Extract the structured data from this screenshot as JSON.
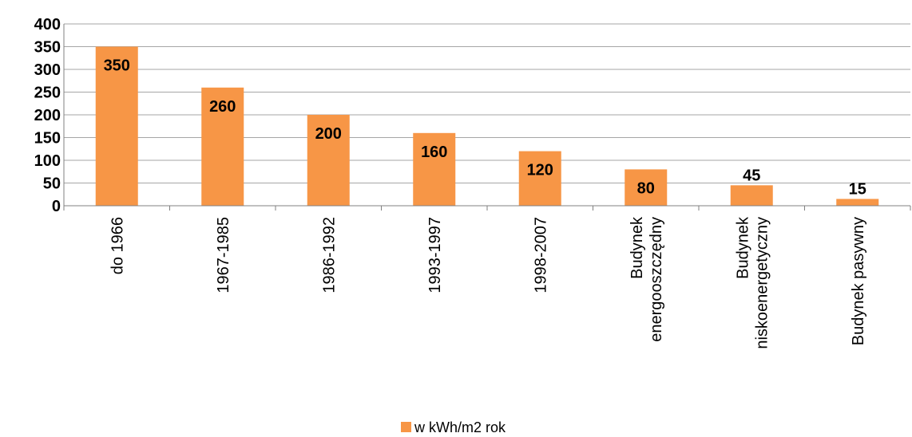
{
  "chart_data": {
    "type": "bar",
    "categories": [
      "do 1966",
      "1967-1985",
      "1986-1992",
      "1993-1997",
      "1998-2007",
      "Budynek energooszczędny",
      "Budynek niskoenergetyczny",
      "Budynek pasywny"
    ],
    "category_lines": [
      [
        "do 1966"
      ],
      [
        "1967-1985"
      ],
      [
        "1986-1992"
      ],
      [
        "1993-1997"
      ],
      [
        "1998-2007"
      ],
      [
        "Budynek",
        "energooszczędny"
      ],
      [
        "Budynek",
        "niskoenergetyczny"
      ],
      [
        "Budynek pasywny"
      ]
    ],
    "series": [
      {
        "name": "w kWh/m2 rok",
        "values": [
          350,
          260,
          200,
          160,
          120,
          80,
          45,
          15
        ]
      }
    ],
    "ylim": [
      0,
      400
    ],
    "yticks": [
      0,
      50,
      100,
      150,
      200,
      250,
      300,
      350,
      400
    ],
    "grid": true,
    "legend": "bottom-center",
    "colors": {
      "bar": "#F79646",
      "grid": "#A6A6A6",
      "axis": "#808080"
    }
  }
}
